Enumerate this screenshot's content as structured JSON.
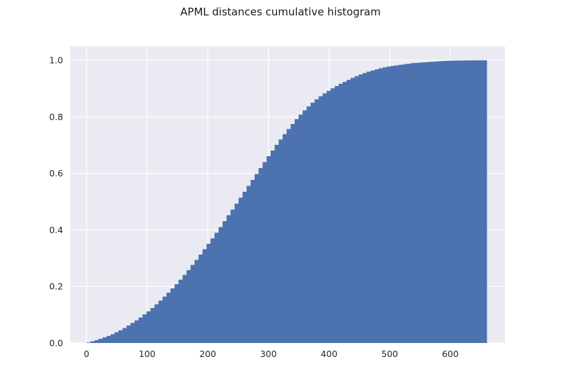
{
  "chart_data": {
    "type": "bar",
    "title": "APML distances cumulative histogram",
    "xlabel": "",
    "ylabel": "",
    "cumulative": true,
    "xlim": [
      -27,
      690
    ],
    "ylim": [
      0,
      1.05
    ],
    "grid": true,
    "style": "seaborn",
    "bar_color": "#4c72b0",
    "background_color": "#eaeaf2",
    "grid_color": "#ffffff",
    "xticks": [
      0,
      100,
      200,
      300,
      400,
      500,
      600
    ],
    "yticks": [
      0.0,
      0.2,
      0.4,
      0.6,
      0.8,
      1.0
    ],
    "xtick_labels": [
      "0",
      "100",
      "200",
      "300",
      "400",
      "500",
      "600"
    ],
    "ytick_labels": [
      "0.0",
      "0.2",
      "0.4",
      "0.6",
      "0.8",
      "1.0"
    ],
    "bins": {
      "start": 0,
      "width": 6.6,
      "count": 100
    },
    "values": [
      0.002,
      0.006,
      0.01,
      0.015,
      0.02,
      0.025,
      0.031,
      0.038,
      0.045,
      0.053,
      0.062,
      0.071,
      0.08,
      0.09,
      0.101,
      0.112,
      0.124,
      0.137,
      0.15,
      0.164,
      0.178,
      0.193,
      0.208,
      0.224,
      0.241,
      0.258,
      0.276,
      0.294,
      0.313,
      0.332,
      0.351,
      0.37,
      0.39,
      0.41,
      0.431,
      0.452,
      0.472,
      0.493,
      0.514,
      0.535,
      0.556,
      0.577,
      0.598,
      0.619,
      0.64,
      0.661,
      0.681,
      0.701,
      0.72,
      0.739,
      0.757,
      0.775,
      0.792,
      0.808,
      0.823,
      0.837,
      0.85,
      0.862,
      0.873,
      0.883,
      0.892,
      0.901,
      0.909,
      0.917,
      0.924,
      0.931,
      0.938,
      0.944,
      0.95,
      0.955,
      0.96,
      0.964,
      0.968,
      0.972,
      0.975,
      0.978,
      0.98,
      0.982,
      0.984,
      0.986,
      0.988,
      0.99,
      0.991,
      0.992,
      0.993,
      0.994,
      0.995,
      0.996,
      0.997,
      0.998,
      0.9985,
      0.999,
      0.9993,
      0.9995,
      0.9997,
      0.9998,
      0.9999,
      1.0,
      1.0,
      1.0
    ]
  }
}
